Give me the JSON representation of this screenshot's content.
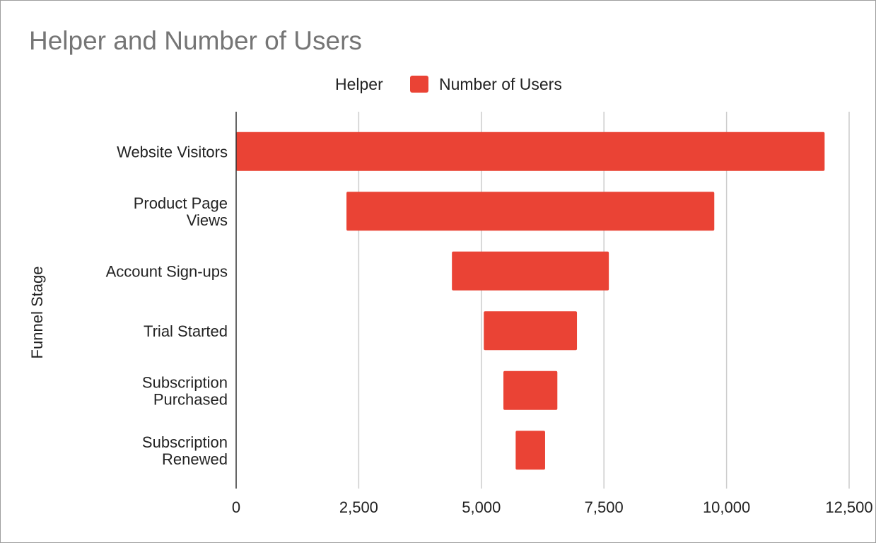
{
  "chart_data": {
    "type": "bar",
    "orientation": "horizontal",
    "stacked": true,
    "title": "Helper and Number of Users",
    "ylabel": "Funnel Stage",
    "xlabel": "",
    "categories": [
      [
        "Website Visitors"
      ],
      [
        "Product Page",
        "Views"
      ],
      [
        "Account Sign-ups"
      ],
      [
        "Trial Started"
      ],
      [
        "Subscription",
        "Purchased"
      ],
      [
        "Subscription",
        "Renewed"
      ]
    ],
    "series": [
      {
        "name": "Helper",
        "values": [
          0,
          2250,
          4400,
          5050,
          5450,
          5700
        ],
        "color": "transparent"
      },
      {
        "name": "Number of Users",
        "values": [
          12000,
          7500,
          3200,
          1900,
          1100,
          600
        ],
        "color": "#EA4335"
      }
    ],
    "xlim": [
      0,
      12500
    ],
    "xticks": [
      0,
      2500,
      5000,
      7500,
      10000,
      12500
    ],
    "xtick_labels": [
      "0",
      "2,500",
      "5,000",
      "7,500",
      "10,000",
      "12,500"
    ],
    "grid": true,
    "legend_position": "top"
  }
}
